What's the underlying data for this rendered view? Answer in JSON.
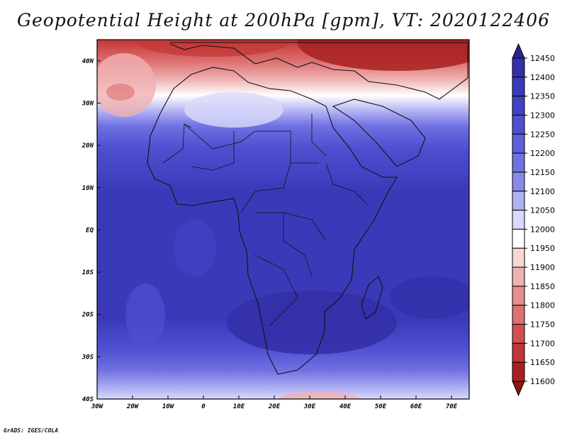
{
  "title": "Geopotential Height at 200hPa [gpm], VT: 2020122406",
  "credit": "GrADS: IGES/COLA",
  "map": {
    "variable": "Geopotential Height",
    "level": "200hPa",
    "units": "gpm",
    "valid_time": "2020122406",
    "lon_range": [
      -30,
      75
    ],
    "lat_range": [
      -40,
      45
    ],
    "lon_ticks": [
      "30W",
      "20W",
      "10W",
      "0",
      "10E",
      "20E",
      "30E",
      "40E",
      "50E",
      "60E",
      "70E"
    ],
    "lat_ticks": [
      "40N",
      "30N",
      "20N",
      "10N",
      "EQ",
      "10S",
      "20S",
      "30S",
      "40S"
    ]
  },
  "colorbar": {
    "levels": [
      "12450",
      "12400",
      "12350",
      "12300",
      "12250",
      "12200",
      "12150",
      "12100",
      "12050",
      "12000",
      "11950",
      "11900",
      "11850",
      "11800",
      "11750",
      "11700",
      "11650",
      "11600"
    ],
    "colors": [
      "#2b2395",
      "#3330a9",
      "#3a3ab9",
      "#4242c6",
      "#4f50d1",
      "#5e5fda",
      "#7071e2",
      "#8989ea",
      "#b0b0f4",
      "#d9d9fa",
      "#ffffff",
      "#f7d7d7",
      "#efb1b1",
      "#e58f8f",
      "#dd7070",
      "#d45050",
      "#c43636",
      "#a82020",
      "#8e1414"
    ]
  }
}
